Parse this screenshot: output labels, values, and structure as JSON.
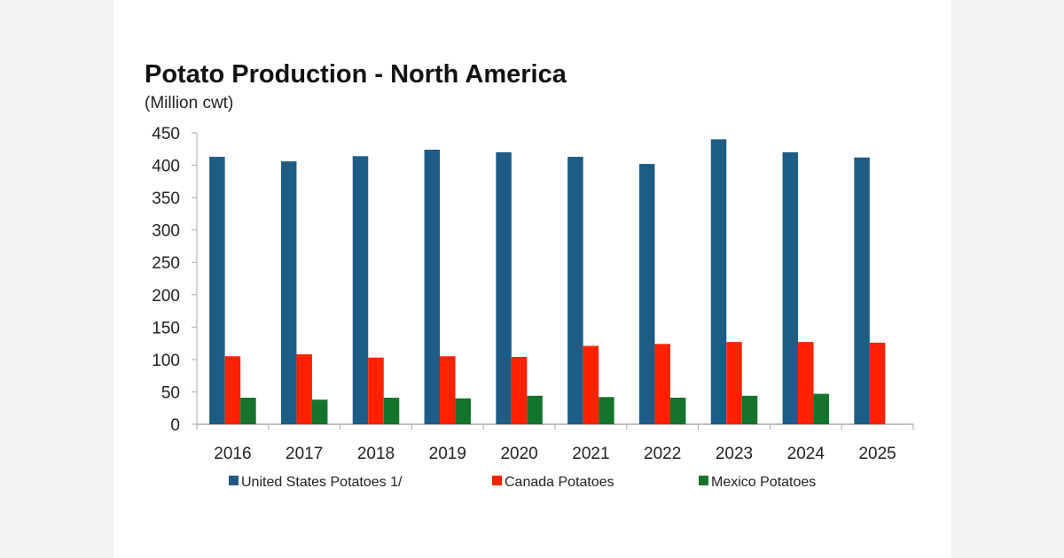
{
  "chart_data": {
    "type": "bar",
    "title": "Potato Production - North America",
    "subtitle": "(Million cwt)",
    "xlabel": "",
    "ylabel": "",
    "ylim": [
      0,
      450
    ],
    "yticks": [
      0,
      50,
      100,
      150,
      200,
      250,
      300,
      350,
      400,
      450
    ],
    "grid": false,
    "legend_position": "bottom",
    "categories": [
      "2016",
      "2017",
      "2018",
      "2019",
      "2020",
      "2021",
      "2022",
      "2023",
      "2024",
      "2025"
    ],
    "series": [
      {
        "name": "United States Potatoes 1/",
        "color": "#1f5c85",
        "values": [
          413,
          406,
          414,
          424,
          420,
          413,
          402,
          440,
          420,
          412
        ]
      },
      {
        "name": "Canada Potatoes",
        "color": "#ff2200",
        "values": [
          105,
          108,
          103,
          105,
          104,
          121,
          124,
          127,
          127,
          126
        ]
      },
      {
        "name": "Mexico Potatoes",
        "color": "#15742a",
        "values": [
          41,
          38,
          41,
          40,
          44,
          42,
          41,
          44,
          47,
          null
        ]
      }
    ]
  }
}
